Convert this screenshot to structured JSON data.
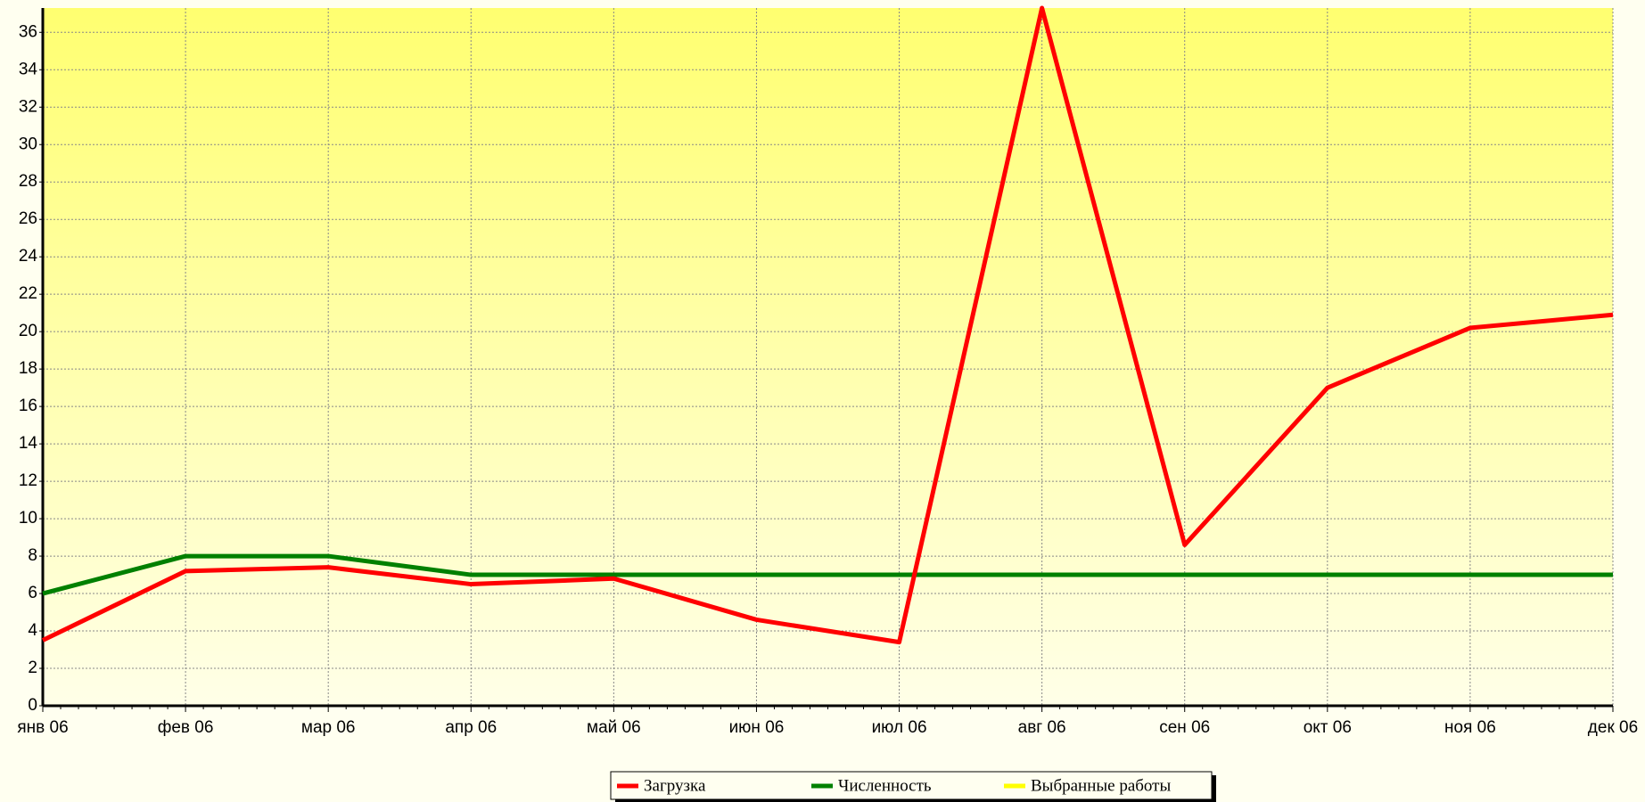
{
  "chart_data": {
    "type": "line",
    "categories": [
      "янв 06",
      "фев 06",
      "мар 06",
      "апр 06",
      "май 06",
      "июн 06",
      "июл 06",
      "авг 06",
      "сен 06",
      "окт 06",
      "ноя 06",
      "дек 06"
    ],
    "series": [
      {
        "name": "Загрузка",
        "color": "#ff0000",
        "values": [
          3.5,
          7.2,
          7.4,
          6.5,
          6.8,
          4.6,
          3.4,
          37.3,
          8.6,
          17.0,
          20.2,
          20.9
        ]
      },
      {
        "name": "Численность",
        "color": "#008000",
        "values": [
          6,
          8,
          8,
          7,
          7,
          7,
          7,
          7,
          7,
          7,
          7,
          7
        ]
      },
      {
        "name": "Выбранные работы",
        "color": "#ffff00",
        "values": [
          null,
          null,
          null,
          null,
          null,
          null,
          null,
          null,
          null,
          null,
          null,
          null
        ]
      }
    ],
    "ylim": [
      0,
      37.3
    ],
    "yticks": [
      0,
      2,
      4,
      6,
      8,
      10,
      12,
      14,
      16,
      18,
      20,
      22,
      24,
      26,
      28,
      30,
      32,
      34,
      36
    ],
    "grid": true
  }
}
